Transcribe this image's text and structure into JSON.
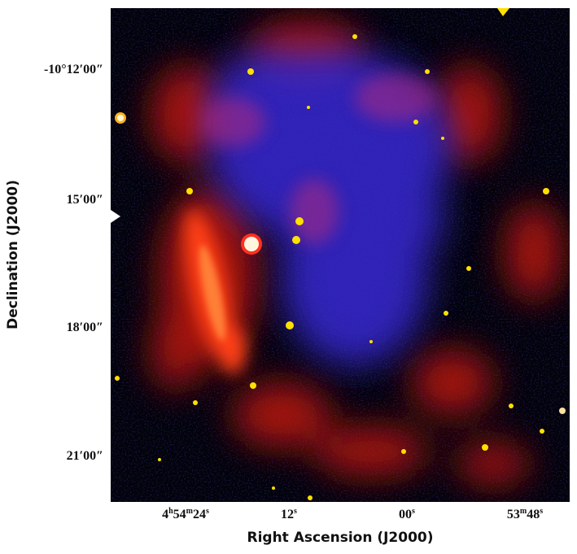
{
  "axes": {
    "x_title": "Right Ascension (J2000)",
    "y_title": "Declination (J2000)",
    "y_ticks": [
      {
        "label": "-10°12′00″"
      },
      {
        "label": "15′00″"
      },
      {
        "label": "18′00″"
      },
      {
        "label": "21′00″"
      }
    ],
    "x_ticks": [
      {
        "h": "4",
        "h_unit": "h",
        "m": "54",
        "m_unit": "m",
        "s": "24",
        "s_unit": "s"
      },
      {
        "s": "12",
        "s_unit": "s"
      },
      {
        "s": "00",
        "s_unit": "s"
      },
      {
        "m": "53",
        "m_unit": "m",
        "s": "48",
        "s_unit": "s"
      }
    ]
  },
  "image": {
    "subject": "composite astronomical image, red and blue emission with yellow point sources",
    "colors": {
      "background": "#02020a",
      "red_emission": "#ff2a10",
      "blue_emission": "#3c2cff",
      "point_sources": "#ffe000"
    }
  }
}
